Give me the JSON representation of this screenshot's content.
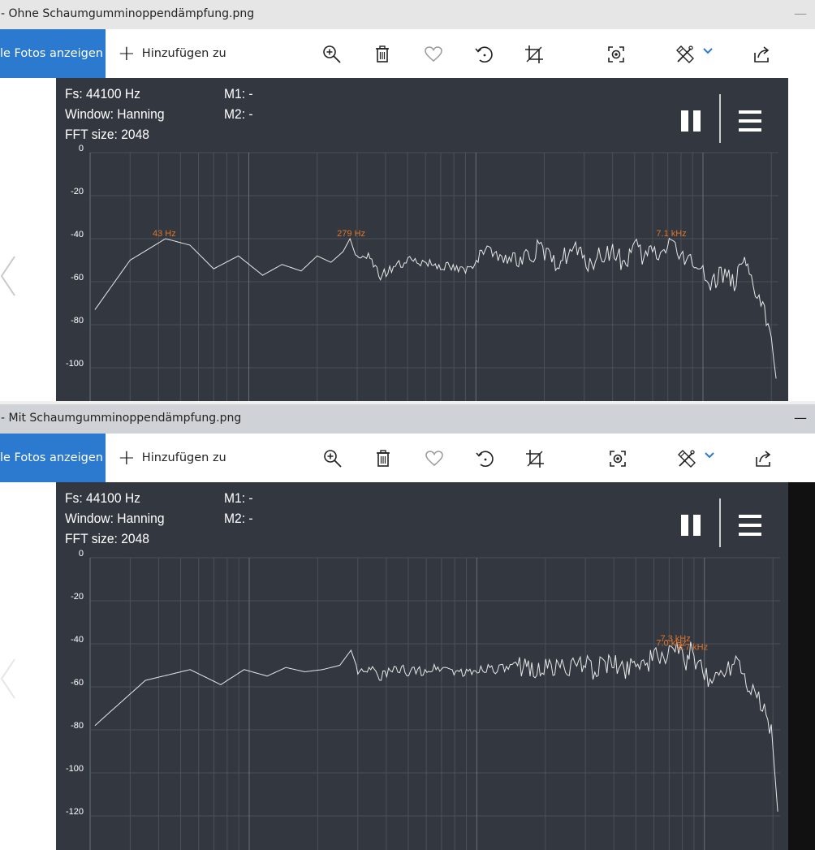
{
  "windows": [
    {
      "title": "- Ohne Schaumgumminoppendämpfung.png",
      "minimize": "—",
      "toolbar": {
        "all_photos": "le Fotos anzeigen",
        "add_to": "Hinzufügen zu",
        "icons": [
          "zoom-in-icon",
          "delete-icon",
          "heart-icon",
          "rotate-icon",
          "crop-icon",
          "focus-icon",
          "edit-icon",
          "chevron-down-icon",
          "share-icon"
        ]
      },
      "app": {
        "fs": "Fs: 44100 Hz",
        "window": "Window: Hanning",
        "fft": "FFT size: 2048",
        "m1": "M1: -",
        "m2": "M2: -"
      },
      "chart_data": {
        "type": "line",
        "x_scale": "log",
        "ylim": [
          -110,
          0
        ],
        "yticks": [
          0,
          -20,
          -40,
          -60,
          -80,
          -100
        ],
        "ytick_labels": [
          "0",
          "-20",
          "-40",
          "-60",
          "-80",
          "-100"
        ],
        "grid": true,
        "series": [
          {
            "x": [
              21,
              30,
              43,
              55,
              70,
              90,
              115,
              140,
              170,
              200,
              230,
              260,
              279,
              300,
              330,
              380,
              450,
              550,
              700,
              900,
              1100,
              1300,
              1600,
              1900,
              2200,
              2500,
              2800,
              3000,
              3300,
              3600,
              4000,
              4500,
              5000,
              5500,
              6000,
              6500,
              7100,
              7700,
              8300,
              9000,
              10000,
              11000,
              12000,
              13000,
              14000,
              15000,
              16000,
              17000,
              18000,
              19000,
              20000,
              20500,
              21000
            ],
            "y": [
              -73,
              -50,
              -40,
              -43,
              -54,
              -48,
              -57,
              -52,
              -55,
              -48,
              -51,
              -46,
              -40,
              -50,
              -48,
              -57,
              -52,
              -50,
              -52,
              -55,
              -45,
              -50,
              -48,
              -45,
              -52,
              -47,
              -45,
              -52,
              -50,
              -48,
              -46,
              -52,
              -44,
              -50,
              -45,
              -48,
              -40,
              -46,
              -52,
              -48,
              -57,
              -60,
              -55,
              -58,
              -60,
              -52,
              -58,
              -65,
              -70,
              -78,
              -85,
              -92,
              -105
            ]
          }
        ],
        "peak_labels": [
          {
            "x": 43,
            "y": -40,
            "text": "43 Hz"
          },
          {
            "x": 279,
            "y": -40,
            "text": "279 Hz"
          },
          {
            "x": 7100,
            "y": -40,
            "text": "7.1  kHz"
          }
        ]
      }
    },
    {
      "title": "- Mit Schaumgumminoppendämpfung.png",
      "minimize": "—",
      "toolbar": {
        "all_photos": "le Fotos anzeigen",
        "add_to": "Hinzufügen zu",
        "icons": [
          "zoom-in-icon",
          "delete-icon",
          "heart-icon",
          "rotate-icon",
          "crop-icon",
          "focus-icon",
          "edit-icon",
          "chevron-down-icon",
          "share-icon"
        ]
      },
      "app": {
        "fs": "Fs: 44100 Hz",
        "window": "Window: Hanning",
        "fft": "FFT size: 2048",
        "m1": "M1: -",
        "m2": "M2: -"
      },
      "chart_data": {
        "type": "line",
        "x_scale": "log",
        "ylim": [
          -130,
          0
        ],
        "yticks": [
          0,
          -20,
          -40,
          -60,
          -80,
          -100,
          -120
        ],
        "ytick_labels": [
          "0",
          "-20",
          "-40",
          "-60",
          "-80",
          "-100",
          "-120"
        ],
        "grid": true,
        "series": [
          {
            "x": [
              21,
              35,
              55,
              75,
              95,
              120,
              145,
              175,
              210,
              250,
              280,
              300,
              330,
              380,
              450,
              550,
              700,
              900,
              1100,
              1300,
              1600,
              1900,
              2200,
              2500,
              2800,
              3000,
              3300,
              3600,
              4000,
              4500,
              5000,
              5500,
              6000,
              6500,
              7000,
              7300,
              7700,
              8300,
              8700,
              9300,
              10000,
              11000,
              12000,
              13000,
              14000,
              15000,
              16000,
              17000,
              18000,
              19000,
              20000,
              20500,
              21000
            ],
            "y": [
              -78,
              -57,
              -52,
              -59,
              -52,
              -55,
              -51,
              -53,
              -52,
              -50,
              -43,
              -52,
              -51,
              -55,
              -52,
              -53,
              -51,
              -54,
              -51,
              -52,
              -50,
              -52,
              -51,
              -50,
              -52,
              -48,
              -53,
              -49,
              -50,
              -52,
              -47,
              -50,
              -46,
              -48,
              -42,
              -40,
              -45,
              -48,
              -44,
              -50,
              -55,
              -57,
              -52,
              -50,
              -45,
              -55,
              -60,
              -64,
              -70,
              -75,
              -85,
              -100,
              -118
            ]
          }
        ],
        "peak_labels": [
          {
            "x": 7300,
            "y": -40,
            "text": "7.3  kHz"
          },
          {
            "x": 7000,
            "y": -42,
            "text": "7.0  kHz"
          },
          {
            "x": 8700,
            "y": -44,
            "text": "8.7  kHz"
          }
        ]
      }
    }
  ]
}
